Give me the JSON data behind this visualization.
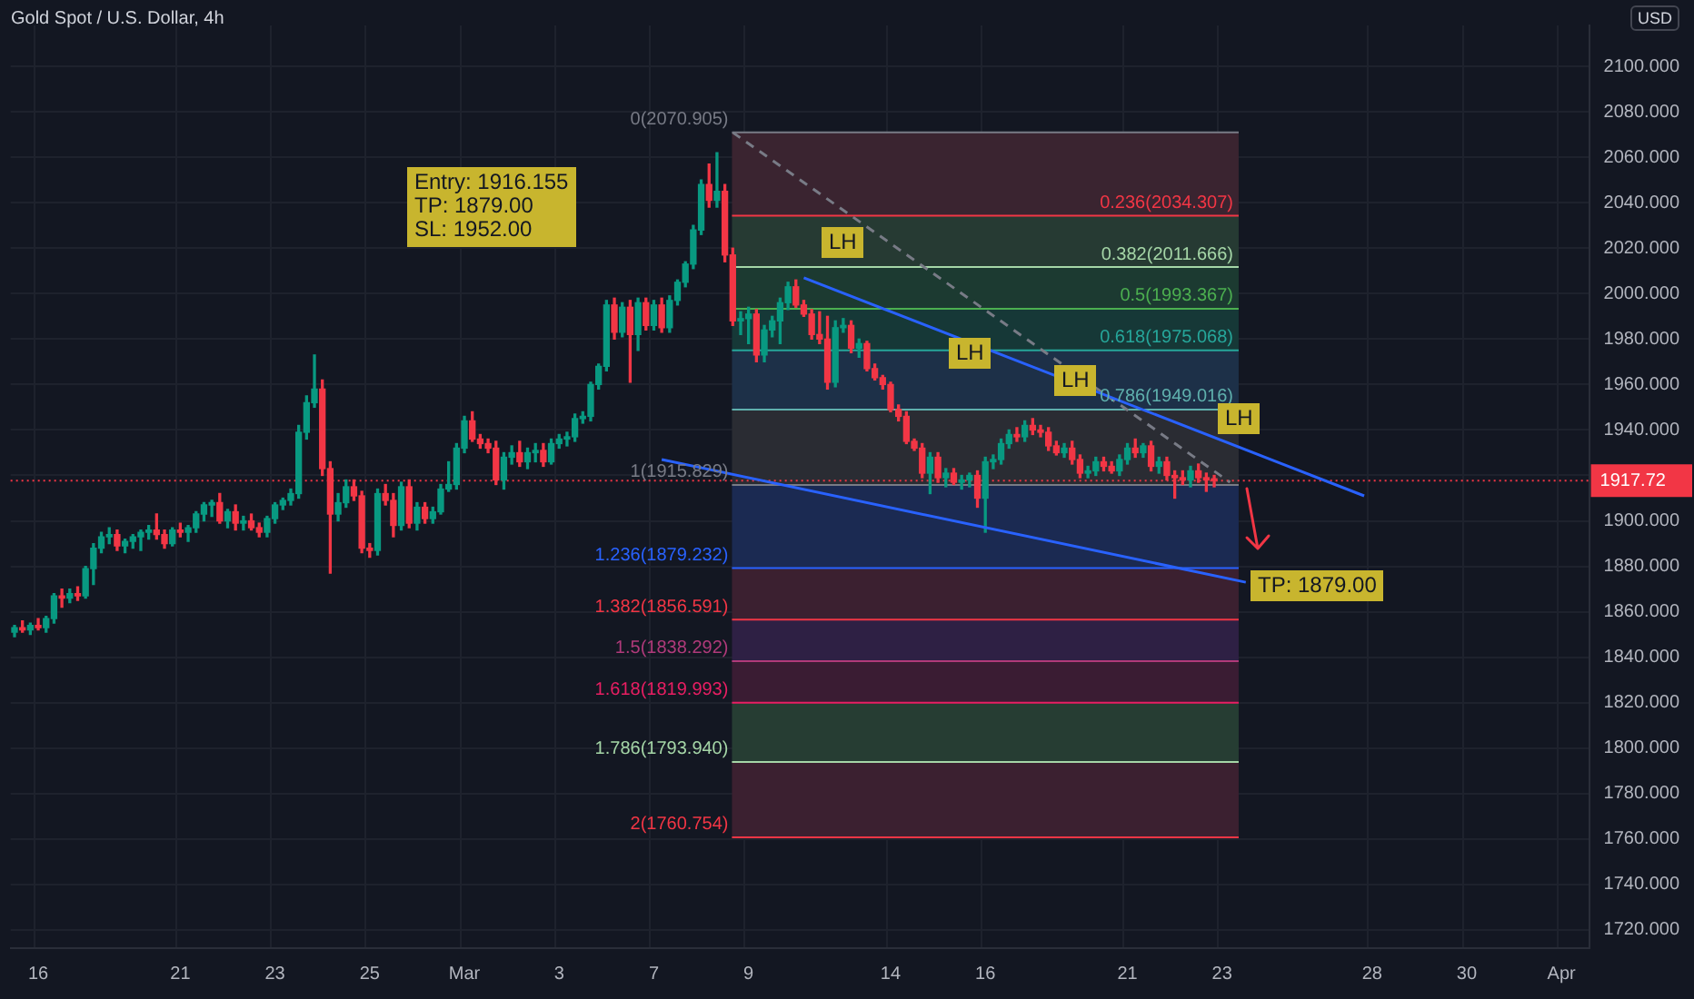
{
  "chart_data": {
    "type": "candlestick",
    "title": "Gold Spot / U.S. Dollar, 4h",
    "ylabel": "USD",
    "categories": [
      null,
      null,
      null,
      "16",
      null,
      null,
      null,
      null,
      null,
      null,
      null,
      null,
      null,
      null,
      null,
      null,
      null,
      null,
      null,
      null,
      null,
      "21",
      null,
      null,
      null,
      null,
      null,
      null,
      null,
      null,
      null,
      null,
      null,
      "23",
      null,
      null,
      null,
      null,
      null,
      null,
      null,
      null,
      null,
      null,
      null,
      "25",
      null,
      null,
      null,
      null,
      null,
      null,
      null,
      null,
      null,
      null,
      null,
      "Mar",
      null,
      null,
      null,
      null,
      null,
      null,
      null,
      null,
      null,
      null,
      null,
      "3",
      null,
      null,
      null,
      null,
      null,
      null,
      null,
      null,
      null,
      null,
      null,
      "7",
      null,
      null,
      null,
      null,
      null,
      null,
      null,
      null,
      null,
      null,
      null,
      "9",
      null,
      null,
      null,
      null,
      null,
      null,
      null,
      null,
      null,
      null,
      null,
      null,
      null,
      null,
      null,
      null,
      null,
      "14",
      null,
      null,
      null,
      null,
      null,
      null,
      null,
      null,
      null,
      null,
      null,
      "16",
      null,
      null,
      null,
      null,
      null,
      null,
      null,
      null,
      null,
      null,
      null,
      null,
      null,
      null,
      null,
      null,
      null,
      "21",
      null,
      null,
      null,
      null,
      null,
      null,
      null,
      null,
      null,
      null,
      null,
      "23",
      null,
      null,
      null,
      null,
      null,
      null,
      null,
      null,
      null,
      null,
      null,
      null,
      null,
      null,
      null,
      null,
      null,
      null,
      "28",
      null,
      null,
      null,
      null,
      null,
      null,
      null,
      null,
      null,
      null,
      null,
      "30",
      null,
      null,
      null,
      null,
      null,
      null,
      null,
      null,
      null,
      null,
      null,
      "Apr",
      null,
      null,
      null
    ],
    "ohlc": [
      [
        1851,
        1854,
        1849,
        1853
      ],
      [
        1853,
        1856,
        1851,
        1852
      ],
      [
        1852,
        1855,
        1850,
        1854
      ],
      [
        1854,
        1857,
        1852,
        1853
      ],
      [
        1853,
        1858,
        1851,
        1857
      ],
      [
        1857,
        1868,
        1855,
        1867
      ],
      [
        1867,
        1870,
        1862,
        1866
      ],
      [
        1866,
        1870,
        1864,
        1868
      ],
      [
        1868,
        1871,
        1865,
        1867
      ],
      [
        1867,
        1880,
        1866,
        1879
      ],
      [
        1879,
        1890,
        1872,
        1888
      ],
      [
        1888,
        1895,
        1886,
        1893
      ],
      [
        1893,
        1897,
        1890,
        1894
      ],
      [
        1894,
        1896,
        1887,
        1889
      ],
      [
        1889,
        1892,
        1886,
        1891
      ],
      [
        1891,
        1894,
        1888,
        1893
      ],
      [
        1893,
        1896,
        1887,
        1895
      ],
      [
        1895,
        1898,
        1892,
        1896
      ],
      [
        1896,
        1903,
        1892,
        1894
      ],
      [
        1894,
        1896,
        1888,
        1890
      ],
      [
        1890,
        1897,
        1889,
        1896
      ],
      [
        1896,
        1899,
        1893,
        1895
      ],
      [
        1895,
        1898,
        1891,
        1897
      ],
      [
        1897,
        1904,
        1895,
        1903
      ],
      [
        1903,
        1908,
        1900,
        1907
      ],
      [
        1907,
        1909,
        1902,
        1908
      ],
      [
        1908,
        1912,
        1899,
        1900
      ],
      [
        1900,
        1905,
        1897,
        1904
      ],
      [
        1904,
        1907,
        1896,
        1899
      ],
      [
        1899,
        1902,
        1896,
        1900
      ],
      [
        1900,
        1903,
        1896,
        1897
      ],
      [
        1897,
        1899,
        1893,
        1895
      ],
      [
        1895,
        1902,
        1893,
        1901
      ],
      [
        1901,
        1908,
        1899,
        1907
      ],
      [
        1907,
        1910,
        1905,
        1909
      ],
      [
        1909,
        1914,
        1907,
        1912
      ],
      [
        1912,
        1942,
        1910,
        1939
      ],
      [
        1939,
        1955,
        1936,
        1952
      ],
      [
        1952,
        1973,
        1950,
        1958
      ],
      [
        1958,
        1962,
        1920,
        1923
      ],
      [
        1923,
        1926,
        1877,
        1903
      ],
      [
        1903,
        1912,
        1900,
        1908
      ],
      [
        1908,
        1918,
        1906,
        1915
      ],
      [
        1915,
        1918,
        1909,
        1911
      ],
      [
        1911,
        1913,
        1886,
        1888
      ],
      [
        1888,
        1890,
        1884,
        1887
      ],
      [
        1887,
        1914,
        1885,
        1912
      ],
      [
        1912,
        1916,
        1907,
        1909
      ],
      [
        1909,
        1912,
        1893,
        1898
      ],
      [
        1898,
        1917,
        1896,
        1915
      ],
      [
        1915,
        1918,
        1897,
        1899
      ],
      [
        1899,
        1908,
        1896,
        1906
      ],
      [
        1906,
        1908,
        1899,
        1901
      ],
      [
        1901,
        1906,
        1899,
        1904
      ],
      [
        1904,
        1916,
        1903,
        1914
      ],
      [
        1914,
        1926,
        1913,
        1916
      ],
      [
        1916,
        1934,
        1914,
        1932
      ],
      [
        1932,
        1946,
        1930,
        1944
      ],
      [
        1944,
        1948,
        1935,
        1936
      ],
      [
        1936,
        1938,
        1932,
        1934
      ],
      [
        1934,
        1936,
        1930,
        1932
      ],
      [
        1932,
        1935,
        1916,
        1918
      ],
      [
        1918,
        1930,
        1914,
        1928
      ],
      [
        1928,
        1933,
        1925,
        1930
      ],
      [
        1930,
        1935,
        1924,
        1926
      ],
      [
        1926,
        1932,
        1923,
        1930
      ],
      [
        1930,
        1934,
        1926,
        1931
      ],
      [
        1931,
        1934,
        1924,
        1926
      ],
      [
        1926,
        1936,
        1925,
        1934
      ],
      [
        1934,
        1938,
        1932,
        1936
      ],
      [
        1936,
        1939,
        1933,
        1937
      ],
      [
        1937,
        1947,
        1935,
        1945
      ],
      [
        1945,
        1948,
        1943,
        1946
      ],
      [
        1946,
        1961,
        1944,
        1960
      ],
      [
        1960,
        1969,
        1958,
        1968
      ],
      [
        1968,
        1997,
        1966,
        1995
      ],
      [
        1995,
        1998,
        1980,
        1983
      ],
      [
        1983,
        1996,
        1981,
        1994
      ],
      [
        1994,
        1997,
        1961,
        1982
      ],
      [
        1982,
        1998,
        1975,
        1996
      ],
      [
        1996,
        1998,
        1984,
        1986
      ],
      [
        1986,
        1997,
        1984,
        1995
      ],
      [
        1995,
        1998,
        1983,
        1985
      ],
      [
        1985,
        1999,
        1983,
        1997
      ],
      [
        1997,
        2006,
        1995,
        2005
      ],
      [
        2005,
        2014,
        2003,
        2013
      ],
      [
        2013,
        2030,
        2011,
        2028
      ],
      [
        2028,
        2050,
        2026,
        2048
      ],
      [
        2048,
        2057,
        2038,
        2041
      ],
      [
        2041,
        2062,
        2038,
        2045
      ],
      [
        2045,
        2048,
        2014,
        2017
      ],
      [
        2017,
        2020,
        1986,
        1988
      ],
      [
        1988,
        1992,
        1982,
        1989
      ],
      [
        1989,
        1994,
        1978,
        1991
      ],
      [
        1991,
        1993,
        1970,
        1973
      ],
      [
        1973,
        1986,
        1970,
        1984
      ],
      [
        1984,
        1990,
        1981,
        1988
      ],
      [
        1988,
        1998,
        1978,
        1996
      ],
      [
        1996,
        2005,
        1993,
        2003
      ],
      [
        2003,
        2006,
        1994,
        1995
      ],
      [
        1995,
        1997,
        1990,
        1991
      ],
      [
        1991,
        1993,
        1980,
        1982
      ],
      [
        1982,
        1992,
        1978,
        1980
      ],
      [
        1980,
        1990,
        1958,
        1961
      ],
      [
        1961,
        1988,
        1959,
        1985
      ],
      [
        1985,
        1989,
        1983,
        1986
      ],
      [
        1986,
        1988,
        1974,
        1976
      ],
      [
        1976,
        1980,
        1972,
        1978
      ],
      [
        1978,
        1979,
        1966,
        1967
      ],
      [
        1967,
        1969,
        1962,
        1963
      ],
      [
        1963,
        1964,
        1958,
        1960
      ],
      [
        1960,
        1961,
        1948,
        1949
      ],
      [
        1949,
        1951,
        1944,
        1946
      ],
      [
        1946,
        1948,
        1934,
        1935
      ],
      [
        1935,
        1936,
        1931,
        1932
      ],
      [
        1932,
        1934,
        1919,
        1921
      ],
      [
        1921,
        1930,
        1912,
        1928
      ],
      [
        1928,
        1930,
        1917,
        1919
      ],
      [
        1919,
        1923,
        1915,
        1921
      ],
      [
        1921,
        1923,
        1916,
        1917
      ],
      [
        1917,
        1920,
        1914,
        1918
      ],
      [
        1918,
        1921,
        1915,
        1920
      ],
      [
        1920,
        1922,
        1906,
        1910
      ],
      [
        1910,
        1928,
        1895,
        1926
      ],
      [
        1926,
        1929,
        1923,
        1927
      ],
      [
        1927,
        1936,
        1925,
        1934
      ],
      [
        1934,
        1940,
        1932,
        1938
      ],
      [
        1938,
        1941,
        1935,
        1937
      ],
      [
        1937,
        1944,
        1935,
        1942
      ],
      [
        1942,
        1945,
        1938,
        1940
      ],
      [
        1940,
        1942,
        1937,
        1939
      ],
      [
        1939,
        1941,
        1931,
        1933
      ],
      [
        1933,
        1935,
        1929,
        1930
      ],
      [
        1930,
        1934,
        1928,
        1932
      ],
      [
        1932,
        1935,
        1925,
        1927
      ],
      [
        1927,
        1929,
        1919,
        1921
      ],
      [
        1921,
        1924,
        1919,
        1922
      ],
      [
        1922,
        1928,
        1920,
        1926
      ],
      [
        1926,
        1928,
        1922,
        1924
      ],
      [
        1924,
        1926,
        1921,
        1922
      ],
      [
        1922,
        1929,
        1920,
        1927
      ],
      [
        1927,
        1934,
        1925,
        1932
      ],
      [
        1932,
        1936,
        1928,
        1930
      ],
      [
        1930,
        1934,
        1928,
        1933
      ],
      [
        1933,
        1935,
        1922,
        1924
      ],
      [
        1924,
        1928,
        1921,
        1926
      ],
      [
        1926,
        1928,
        1918,
        1920
      ],
      [
        1920,
        1922,
        1910,
        1919
      ],
      [
        1919,
        1922,
        1916,
        1918
      ],
      [
        1918,
        1924,
        1915,
        1922
      ],
      [
        1922,
        1925,
        1917,
        1919
      ],
      [
        1919,
        1921,
        1913,
        1918
      ],
      [
        1918,
        1920,
        1915,
        1917.72
      ],
      null,
      null,
      null,
      null,
      null,
      null,
      null,
      null,
      null,
      null,
      null,
      null,
      null,
      null,
      null,
      null,
      null,
      null,
      null,
      null,
      null,
      null,
      null,
      null,
      null,
      null,
      null,
      null,
      null,
      null,
      null,
      null,
      null,
      null,
      null,
      null,
      null,
      null,
      null,
      null,
      null,
      null,
      null,
      null,
      null,
      null,
      null
    ],
    "series": [
      {
        "type": "line",
        "color": "#2962ff",
        "values": [
          null,
          null,
          null,
          null,
          null,
          null,
          null,
          null,
          null,
          null,
          null,
          null,
          null,
          null,
          null,
          null,
          null,
          null,
          null,
          null,
          null,
          null,
          null,
          null,
          null,
          null,
          null,
          null,
          null,
          null,
          null,
          null,
          null,
          null,
          null,
          null,
          null,
          null,
          null,
          null,
          null,
          null,
          null,
          null,
          null,
          null,
          null,
          null,
          null,
          null,
          null,
          null,
          null,
          null,
          null,
          null,
          null,
          null,
          null,
          null,
          null,
          null,
          null,
          null,
          null,
          null,
          null,
          null,
          null,
          null,
          null,
          null,
          null,
          null,
          null,
          null,
          null,
          null,
          null,
          null,
          null,
          null,
          null,
          null,
          null,
          null,
          null,
          null,
          null,
          null,
          null,
          null,
          null,
          null,
          null,
          null,
          null,
          null,
          null,
          null,
          2007,
          null,
          null,
          null,
          null,
          null,
          null,
          null,
          null,
          null,
          null,
          null,
          null,
          null,
          null,
          null,
          null,
          null,
          null,
          null,
          null,
          null,
          null,
          null,
          null,
          null,
          null,
          null,
          null,
          null,
          null,
          null,
          null,
          null,
          null,
          null,
          null,
          null,
          null,
          null,
          null,
          null,
          null,
          null,
          null,
          null,
          null,
          null,
          null,
          null,
          null,
          null,
          null,
          null,
          null,
          null,
          null,
          null,
          null,
          null,
          null,
          null,
          null,
          null,
          null,
          null,
          null,
          null,
          null,
          null,
          null,
          1911,
          null,
          null,
          null,
          null,
          null,
          null,
          null,
          null,
          null,
          null,
          null,
          null,
          null,
          null,
          null,
          null,
          null,
          null,
          null,
          null,
          null,
          null,
          null,
          null,
          null,
          null,
          null,
          null
        ]
      },
      {
        "type": "line",
        "color": "#2962ff",
        "values": [
          null,
          null,
          null,
          null,
          null,
          null,
          null,
          null,
          null,
          null,
          null,
          null,
          null,
          null,
          null,
          null,
          null,
          null,
          null,
          null,
          null,
          null,
          null,
          null,
          null,
          null,
          null,
          null,
          null,
          null,
          null,
          null,
          null,
          null,
          null,
          null,
          null,
          null,
          null,
          null,
          null,
          null,
          null,
          null,
          null,
          null,
          null,
          null,
          null,
          null,
          null,
          null,
          null,
          null,
          null,
          null,
          null,
          null,
          null,
          null,
          null,
          null,
          null,
          null,
          null,
          null,
          null,
          null,
          null,
          null,
          null,
          null,
          null,
          null,
          null,
          null,
          null,
          null,
          null,
          null,
          null,
          null,
          1927,
          null,
          null,
          null,
          null,
          null,
          null,
          null,
          null,
          null,
          null,
          null,
          null,
          null,
          null,
          null,
          null,
          null,
          null,
          null,
          null,
          null,
          null,
          null,
          null,
          null,
          null,
          null,
          null,
          null,
          null,
          null,
          null,
          null,
          null,
          null,
          null,
          null,
          null,
          null,
          null,
          null,
          null,
          null,
          null,
          null,
          null,
          null,
          null,
          null,
          null,
          null,
          null,
          null,
          null,
          null,
          null,
          null,
          null,
          null,
          null,
          null,
          null,
          null,
          null,
          null,
          null,
          null,
          null,
          null,
          null,
          null,
          null,
          null,
          1873,
          null,
          null,
          null,
          null,
          null,
          null,
          null,
          null,
          null,
          null,
          null,
          null,
          null,
          null,
          null,
          null,
          null,
          null,
          null,
          null,
          null,
          null,
          null,
          null,
          null,
          null,
          null,
          null,
          null,
          null,
          null,
          null,
          null,
          null,
          null,
          null,
          null,
          null,
          null,
          null,
          null,
          null,
          null
        ]
      },
      {
        "type": "line",
        "color": "#787b86",
        "line_style": "dashed",
        "values": [
          null,
          null,
          null,
          null,
          null,
          null,
          null,
          null,
          null,
          null,
          null,
          null,
          null,
          null,
          null,
          null,
          null,
          null,
          null,
          null,
          null,
          null,
          null,
          null,
          null,
          null,
          null,
          null,
          null,
          null,
          null,
          null,
          null,
          null,
          null,
          null,
          null,
          null,
          null,
          null,
          null,
          null,
          null,
          null,
          null,
          null,
          null,
          null,
          null,
          null,
          null,
          null,
          null,
          null,
          null,
          null,
          null,
          null,
          null,
          null,
          null,
          null,
          null,
          null,
          null,
          null,
          null,
          null,
          null,
          null,
          null,
          null,
          null,
          null,
          null,
          null,
          null,
          null,
          null,
          null,
          null,
          null,
          null,
          null,
          null,
          null,
          null,
          null,
          null,
          null,
          null,
          2070.9,
          null,
          null,
          null,
          null,
          null,
          null,
          null,
          null,
          null,
          null,
          null,
          null,
          null,
          null,
          null,
          null,
          null,
          null,
          null,
          null,
          null,
          null,
          null,
          null,
          null,
          null,
          null,
          null,
          null,
          null,
          null,
          null,
          null,
          null,
          null,
          null,
          null,
          null,
          null,
          null,
          null,
          null,
          null,
          null,
          null,
          null,
          null,
          null,
          null,
          null,
          null,
          null,
          null,
          null,
          null,
          null,
          null,
          null,
          null,
          null,
          null,
          null,
          1917,
          null,
          null,
          null,
          null,
          null,
          null,
          null,
          null,
          null,
          null,
          null,
          null,
          null,
          null,
          null,
          null,
          null,
          null,
          null,
          null,
          null,
          null,
          null,
          null,
          null,
          null,
          null,
          null,
          null,
          null,
          null,
          null,
          null,
          null,
          null,
          null,
          null,
          null,
          null,
          null,
          null,
          null,
          null,
          null,
          null
        ]
      }
    ],
    "ylim": [
      1712,
      2118
    ],
    "yticks": [
      {
        "value": 1720,
        "label": "1720.000"
      },
      {
        "value": 1740,
        "label": "1740.000"
      },
      {
        "value": 1760,
        "label": "1760.000"
      },
      {
        "value": 1780,
        "label": "1780.000"
      },
      {
        "value": 1800,
        "label": "1800.000"
      },
      {
        "value": 1820,
        "label": "1820.000"
      },
      {
        "value": 1840,
        "label": "1840.000"
      },
      {
        "value": 1860,
        "label": "1860.000"
      },
      {
        "value": 1880,
        "label": "1880.000"
      },
      {
        "value": 1900,
        "label": "1900.000"
      },
      {
        "value": 1920,
        "label": null
      },
      {
        "value": 1940,
        "label": "1940.000"
      },
      {
        "value": 1960,
        "label": "1960.000"
      },
      {
        "value": 1980,
        "label": "1980.000"
      },
      {
        "value": 2000,
        "label": "2000.000"
      },
      {
        "value": 2020,
        "label": "2020.000"
      },
      {
        "value": 2040,
        "label": "2040.000"
      },
      {
        "value": 2060,
        "label": "2060.000"
      },
      {
        "value": 2080,
        "label": "2080.000"
      },
      {
        "value": 2100,
        "label": "2100.000"
      }
    ],
    "ref_lines": [
      {
        "axis": "y",
        "value": 2070.905,
        "label": "0(2070.905)",
        "color": "#787b86"
      },
      {
        "axis": "y",
        "value": 2034.307,
        "label": "0.236(2034.307)",
        "color": "#f23645"
      },
      {
        "axis": "y",
        "value": 2011.666,
        "label": "0.382(2011.666)",
        "color": "#a5d6a7"
      },
      {
        "axis": "y",
        "value": 1993.367,
        "label": "0.5(1993.367)",
        "color": "#4caf50"
      },
      {
        "axis": "y",
        "value": 1975.068,
        "label": "0.618(1975.068)",
        "color": "#26a69a"
      },
      {
        "axis": "y",
        "value": 1949.016,
        "label": "0.786(1949.016)",
        "color": "#5fb0ad"
      },
      {
        "axis": "y",
        "value": 1915.829,
        "label": "1(1915.829)",
        "color": "#787b86"
      },
      {
        "axis": "y",
        "value": 1879.232,
        "label": "1.236(1879.232)",
        "color": "#2962ff"
      },
      {
        "axis": "y",
        "value": 1856.591,
        "label": "1.382(1856.591)",
        "color": "#f23645"
      },
      {
        "axis": "y",
        "value": 1838.292,
        "label": "1.5(1838.292)",
        "color": "#b03a7a"
      },
      {
        "axis": "y",
        "value": 1819.993,
        "label": "1.618(1819.993)",
        "color": "#e91e63"
      },
      {
        "axis": "y",
        "value": 1793.94,
        "label": "1.786(1793.940)",
        "color": "#a5d6a7"
      },
      {
        "axis": "y",
        "value": 1760.754,
        "label": "2(1760.754)",
        "color": "#f23645"
      },
      {
        "axis": "y",
        "value": 1917.72,
        "label": "1917.72",
        "color": "#f23645",
        "line_style": "dotted"
      }
    ],
    "bands": [
      {
        "axis": "y",
        "from": 2034.307,
        "to": 2070.905,
        "color": "#3a2430"
      },
      {
        "axis": "y",
        "from": 2011.666,
        "to": 2034.307,
        "color": "#263a33"
      },
      {
        "axis": "y",
        "from": 1993.367,
        "to": 2011.666,
        "color": "#1c3a31"
      },
      {
        "axis": "y",
        "from": 1975.068,
        "to": 1993.367,
        "color": "#163837"
      },
      {
        "axis": "y",
        "from": 1949.016,
        "to": 1975.068,
        "color": "#1d3048"
      },
      {
        "axis": "y",
        "from": 1915.829,
        "to": 1949.016,
        "color": "#2a2c33"
      },
      {
        "axis": "y",
        "from": 1879.232,
        "to": 1915.829,
        "color": "#1b2a52"
      },
      {
        "axis": "y",
        "from": 1856.591,
        "to": 1879.232,
        "color": "#3b2030"
      },
      {
        "axis": "y",
        "from": 1838.292,
        "to": 1856.591,
        "color": "#2e2044"
      },
      {
        "axis": "y",
        "from": 1819.993,
        "to": 1838.292,
        "color": "#3a1c33"
      },
      {
        "axis": "y",
        "from": 1793.94,
        "to": 1819.993,
        "color": "#263d33"
      },
      {
        "axis": "y",
        "from": 1760.754,
        "to": 1793.94,
        "color": "#3b2030"
      }
    ],
    "annotations": [
      "Entry: 1916.155\nTP: 1879.00\nSL: 1952.00",
      "LH",
      "LH",
      "LH",
      "LH",
      "TP: 1879.00"
    ],
    "grid": true,
    "legend": false
  }
}
